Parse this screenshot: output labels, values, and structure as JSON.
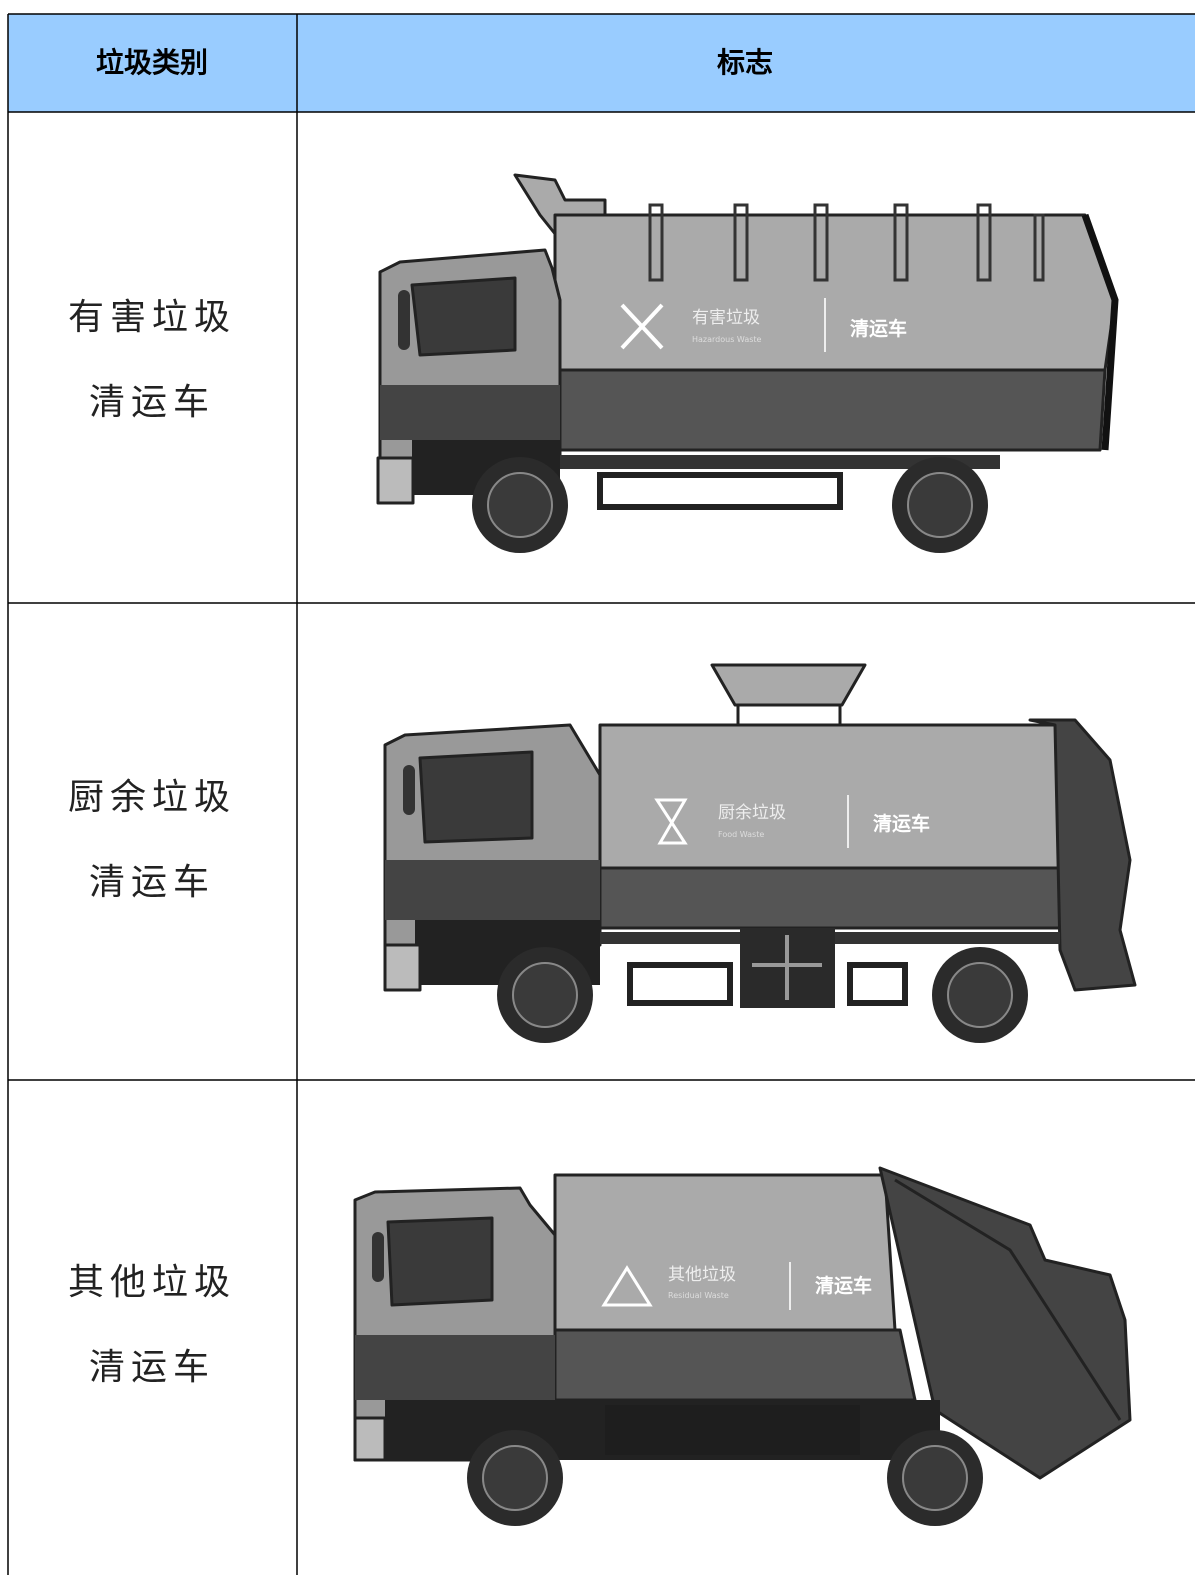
{
  "table": {
    "header": [
      "垃圾类别",
      "标志"
    ],
    "rows": [
      {
        "category": [
          "有害垃圾",
          "清运车"
        ],
        "sign": {
          "name": "有害垃圾",
          "english": "Hazardous Waste",
          "label": "清运车"
        }
      },
      {
        "category": [
          "厨余垃圾",
          "清运车"
        ],
        "sign": {
          "name": "厨余垃圾",
          "english": "Food Waste",
          "label": "清运车"
        }
      },
      {
        "category": [
          "其他垃圾",
          "清运车"
        ],
        "sign": {
          "name": "其他垃圾",
          "english": "Residual Waste",
          "label": "清运车"
        }
      }
    ]
  }
}
